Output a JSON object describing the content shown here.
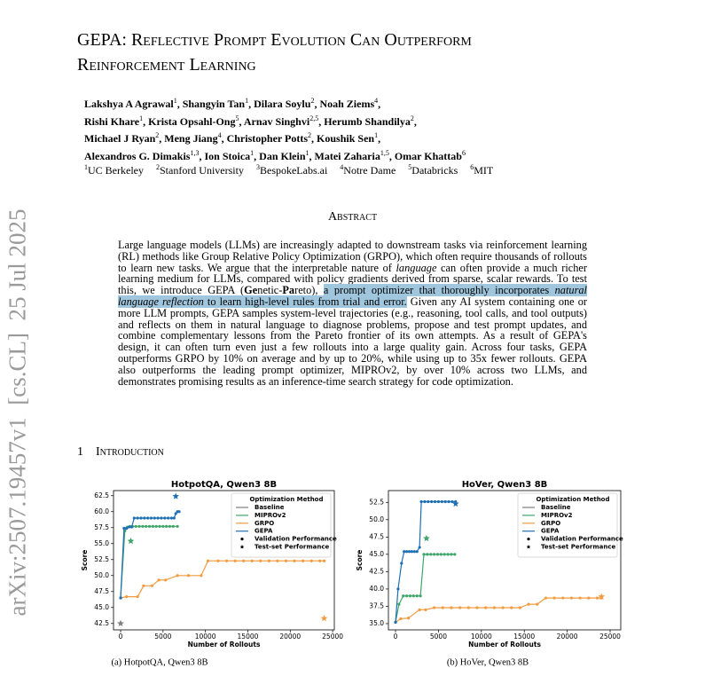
{
  "stamp": "arXiv:2507.19457v1  [cs.CL]  25 Jul 2025",
  "title_lines": [
    "GEPA: Reflective Prompt Evolution Can Outperform",
    "Reinforcement Learning"
  ],
  "author_lines": [
    [
      {
        "name": "Lakshya A Agrawal",
        "aff": "1",
        "sep": ","
      },
      {
        "name": "Shangyin Tan",
        "aff": "1",
        "sep": ","
      },
      {
        "name": "Dilara Soylu",
        "aff": "2",
        "sep": ","
      },
      {
        "name": "Noah Ziems",
        "aff": "4",
        "sep": ","
      }
    ],
    [
      {
        "name": "Rishi Khare",
        "aff": "1",
        "sep": ","
      },
      {
        "name": "Krista Opsahl-Ong",
        "aff": "5",
        "sep": ","
      },
      {
        "name": "Arnav Singhvi",
        "aff": "2,5",
        "sep": ","
      },
      {
        "name": "Herumb Shandilya",
        "aff": "2",
        "sep": ","
      }
    ],
    [
      {
        "name": "Michael J Ryan",
        "aff": "2",
        "sep": ","
      },
      {
        "name": "Meng Jiang",
        "aff": "4",
        "sep": ","
      },
      {
        "name": "Christopher Potts",
        "aff": "2",
        "sep": ","
      },
      {
        "name": "Koushik Sen",
        "aff": "1",
        "sep": ","
      }
    ],
    [
      {
        "name": "Alexandros G. Dimakis",
        "aff": "1,3",
        "sep": ","
      },
      {
        "name": "Ion Stoica",
        "aff": "1",
        "sep": ","
      },
      {
        "name": "Dan Klein",
        "aff": "1",
        "sep": ","
      },
      {
        "name": "Matei Zaharia",
        "aff": "1,5",
        "sep": ","
      },
      {
        "name": "Omar Khattab",
        "aff": "6"
      }
    ]
  ],
  "affiliations": [
    {
      "num": "1",
      "name": "UC Berkeley"
    },
    {
      "num": "2",
      "name": "Stanford University"
    },
    {
      "num": "3",
      "name": "BespokeLabs.ai"
    },
    {
      "num": "4",
      "name": "Notre Dame"
    },
    {
      "num": "5",
      "name": "Databricks"
    },
    {
      "num": "6",
      "name": "MIT"
    }
  ],
  "abstract": {
    "heading": "Abstract",
    "segments": [
      {
        "text": "Large language models (LLMs) are increasingly adapted to downstream tasks via reinforcement learning (RL) methods like Group Relative Policy Optimization (GRPO), which often require thousands of rollouts to learn new tasks. We argue that the interpretable nature of "
      },
      {
        "text": "language",
        "style": "italic"
      },
      {
        "text": " can often provide a much richer learning medium for LLMs, compared with policy gradients derived from sparse, scalar rewards. To test this, we introduce GEPA ("
      },
      {
        "text": "Ge",
        "style": "bold"
      },
      {
        "text": "netic-"
      },
      {
        "text": "Pa",
        "style": "bold"
      },
      {
        "text": "reto), "
      },
      {
        "text": "a prompt optimizer that thoroughly incorporates ",
        "style": "highlight"
      },
      {
        "text": "natural language reflection",
        "style": "highlight italic"
      },
      {
        "text": " to learn high-level rules from trial and error.",
        "style": "highlight"
      },
      {
        "text": " Given any AI system containing one or more LLM prompts, GEPA samples system-level trajectories (e.g., reasoning, tool calls, and tool outputs) and reflects on them in natural language to diagnose problems, propose and test prompt updates, and combine complementary lessons from the Pareto frontier of its own attempts. As a result of GEPA's design, it can often turn even just a few rollouts into a large quality gain. Across four tasks, GEPA outperforms GRPO by 10% on average and by up to 20%, while using up to 35x fewer rollouts. GEPA also outperforms the leading prompt optimizer, MIPROv2, by over 10% across two LLMs, and demonstrates promising results as an inference-time search strategy for code optimization."
      }
    ]
  },
  "section": {
    "number": "1",
    "title": "Introduction"
  },
  "chart_data": [
    {
      "type": "line",
      "title": "HotpotQA, Qwen3 8B",
      "caption": "(a) HotpotQA, Qwen3 8B",
      "x_label": "Number of Rollouts",
      "y_label": "Score",
      "xlim": [
        -840,
        25200
      ],
      "ylim": [
        41.5,
        63.3
      ],
      "xticks": [
        0,
        5000,
        10000,
        15000,
        20000,
        25000
      ],
      "yticks": [
        {
          "value": 42.5,
          "label": "42.5"
        },
        {
          "value": 45,
          "label": "45.0"
        },
        {
          "value": 47.5,
          "label": "47.5"
        },
        {
          "value": 50,
          "label": "50.0"
        },
        {
          "value": 52.5,
          "label": "52.5"
        },
        {
          "value": 55,
          "label": "55.0"
        },
        {
          "value": 57.5,
          "label": "57.5"
        },
        {
          "value": 60,
          "label": "60.0"
        },
        {
          "value": 62.5,
          "label": "62.5"
        }
      ],
      "legend": {
        "title": "Optimization Method",
        "validation": "Validation Performance",
        "test": "Test-set Performance",
        "position": "upper right"
      },
      "series": [
        {
          "name": "Baseline",
          "color": "#7f7f7f",
          "x": [
            0
          ],
          "values": [
            46.5
          ],
          "test_x": 0,
          "test_value": 42.5
        },
        {
          "name": "MIPROv2",
          "color": "#3fa66a",
          "x": [
            0,
            500,
            800,
            1100,
            1400,
            1800,
            2200,
            2600,
            3000,
            3400,
            3800,
            4200,
            4600,
            5000,
            5400,
            5800,
            6200,
            6700
          ],
          "values": [
            46.5,
            57.0,
            57.6,
            57.7,
            57.7,
            57.7,
            57.7,
            57.7,
            57.7,
            57.7,
            57.7,
            57.7,
            57.7,
            57.7,
            57.7,
            57.7,
            57.7,
            57.7
          ],
          "test_x": 1200,
          "test_value": 55.4
        },
        {
          "name": "GRPO",
          "color": "#f29b3f",
          "x": [
            0,
            700,
            2000,
            2700,
            3700,
            4500,
            5300,
            6700,
            8000,
            9500,
            10300,
            11500,
            12500,
            13500,
            14500,
            15500,
            16500,
            17500,
            18500,
            19500,
            20500,
            21500,
            22500,
            23500,
            24000
          ],
          "values": [
            46.5,
            46.7,
            46.7,
            48.4,
            48.4,
            49.3,
            49.3,
            50.0,
            50.0,
            50.0,
            52.3,
            52.3,
            52.3,
            52.3,
            52.3,
            52.3,
            52.3,
            52.3,
            52.3,
            52.3,
            52.3,
            52.3,
            52.3,
            52.3,
            52.3
          ],
          "test_x": 24000,
          "test_value": 43.3
        },
        {
          "name": "GEPA",
          "color": "#1f6fb5",
          "x": [
            0,
            400,
            700,
            1000,
            1300,
            1600,
            2000,
            2400,
            2800,
            3200,
            3600,
            4000,
            4400,
            4800,
            5200,
            5600,
            6000,
            6300,
            6500,
            6700,
            6900
          ],
          "values": [
            46.5,
            57.4,
            57.4,
            57.6,
            57.6,
            59.0,
            59.0,
            59.0,
            59.0,
            59.0,
            59.0,
            59.0,
            59.0,
            59.0,
            59.0,
            59.0,
            59.0,
            59.0,
            59.7,
            60.0,
            60.0
          ],
          "test_x": 6500,
          "test_value": 62.4
        }
      ]
    },
    {
      "type": "line",
      "title": "HoVer, Qwen3 8B",
      "caption": "(b) HoVer, Qwen3 8B",
      "x_label": "Number of Rollouts",
      "y_label": "Score",
      "xlim": [
        -830,
        26240
      ],
      "ylim": [
        34.1,
        54.2
      ],
      "xticks": [
        0,
        5000,
        10000,
        15000,
        20000,
        25000
      ],
      "yticks": [
        {
          "value": 35,
          "label": "35.0"
        },
        {
          "value": 37.5,
          "label": "37.5"
        },
        {
          "value": 40,
          "label": "40.0"
        },
        {
          "value": 42.5,
          "label": "42.5"
        },
        {
          "value": 45,
          "label": "45.0"
        },
        {
          "value": 47.5,
          "label": "47.5"
        },
        {
          "value": 50,
          "label": "50.0"
        },
        {
          "value": 52.5,
          "label": "52.5"
        }
      ],
      "legend": {
        "title": "Optimization Method",
        "validation": "Validation Performance",
        "test": "Test-set Performance",
        "position": "upper right"
      },
      "series": [
        {
          "name": "Baseline",
          "color": "#7f7f7f",
          "x": [
            0
          ],
          "values": [
            35.2
          ]
        },
        {
          "name": "MIPROv2",
          "color": "#3fa66a",
          "x": [
            0,
            400,
            900,
            1300,
            1700,
            2100,
            2500,
            2900,
            3300,
            3700,
            4100,
            4500,
            4900,
            5300,
            5700,
            6100,
            6500,
            6900
          ],
          "values": [
            35.2,
            37.8,
            39.0,
            39.0,
            39.0,
            39.0,
            39.0,
            39.0,
            45.0,
            45.0,
            45.0,
            45.0,
            45.0,
            45.0,
            45.0,
            45.0,
            45.0,
            45.0
          ],
          "test_x": 3600,
          "test_value": 47.3
        },
        {
          "name": "GRPO",
          "color": "#f29b3f",
          "x": [
            0,
            600,
            1500,
            2800,
            3500,
            4500,
            5500,
            6500,
            7500,
            8500,
            9500,
            10500,
            11500,
            12500,
            13500,
            14500,
            15500,
            16500,
            17500,
            18500,
            19500,
            20500,
            21500,
            22500,
            23500,
            24000
          ],
          "values": [
            35.2,
            35.7,
            35.8,
            37.0,
            37.0,
            37.3,
            37.3,
            37.3,
            37.3,
            37.3,
            37.3,
            37.3,
            37.3,
            37.3,
            37.3,
            37.3,
            37.8,
            37.8,
            38.7,
            38.7,
            38.7,
            38.7,
            38.7,
            38.7,
            38.7,
            38.7
          ],
          "test_x": 24000,
          "test_value": 38.9
        },
        {
          "name": "GEPA",
          "color": "#1f6fb5",
          "x": [
            0,
            300,
            700,
            1000,
            1300,
            1600,
            1900,
            2200,
            2500,
            2800,
            3000,
            3400,
            3800,
            4200,
            4600,
            5000,
            5400,
            5800,
            6200,
            6600,
            7000
          ],
          "values": [
            35.2,
            40.0,
            43.7,
            45.4,
            45.4,
            45.4,
            45.4,
            45.4,
            45.4,
            46.0,
            52.6,
            52.6,
            52.6,
            52.6,
            52.6,
            52.6,
            52.6,
            52.6,
            52.6,
            52.6,
            52.6
          ],
          "test_x": 7000,
          "test_value": 52.3
        }
      ]
    }
  ]
}
